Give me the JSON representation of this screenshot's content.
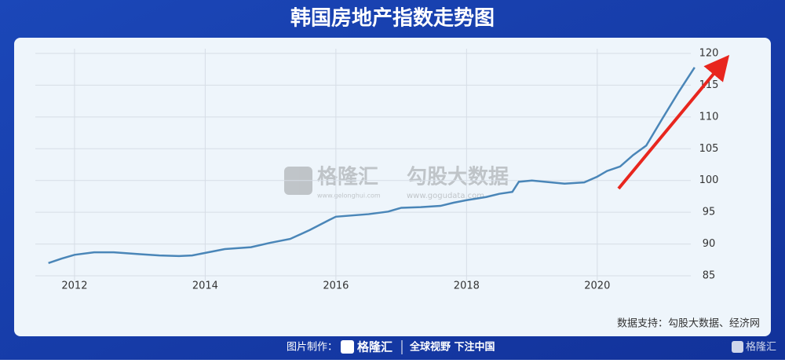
{
  "chart_data": {
    "type": "line",
    "title": "韩国房地产指数走势图",
    "x": [
      2011.6,
      2011.8,
      2012.0,
      2012.3,
      2012.6,
      2013.0,
      2013.3,
      2013.6,
      2013.8,
      2014.0,
      2014.3,
      2014.7,
      2015.0,
      2015.3,
      2015.6,
      2015.9,
      2016.0,
      2016.5,
      2016.8,
      2017.0,
      2017.3,
      2017.6,
      2017.8,
      2018.0,
      2018.3,
      2018.5,
      2018.7,
      2018.8,
      2019.0,
      2019.5,
      2019.8,
      2020.0,
      2020.15,
      2020.35,
      2020.55,
      2020.75,
      2021.0,
      2021.25,
      2021.49
    ],
    "series": [
      {
        "color": "#4a86b8",
        "values": [
          87.0,
          87.7,
          88.3,
          88.7,
          88.7,
          88.4,
          88.2,
          88.1,
          88.2,
          88.6,
          89.2,
          89.5,
          90.2,
          90.8,
          92.2,
          93.8,
          94.3,
          94.7,
          95.1,
          95.7,
          95.8,
          96.0,
          96.5,
          96.9,
          97.4,
          97.9,
          98.2,
          99.8,
          100.0,
          99.5,
          99.7,
          100.6,
          101.5,
          102.2,
          104.0,
          105.5,
          109.8,
          114.0,
          117.8
        ]
      }
    ],
    "xlim": [
      2011.4,
      2021.6
    ],
    "xticks": [
      2012,
      2014,
      2016,
      2018,
      2020
    ],
    "ylim": [
      85,
      120
    ],
    "yticks": [
      85,
      90,
      95,
      100,
      105,
      110,
      115,
      120
    ],
    "grid": true
  },
  "watermarks": [
    "格隆汇",
    "www.gelonghui.com",
    "勾股大数据",
    "www.gogudata.com"
  ],
  "source": "数据支持：勾股大数据、经济网",
  "footer": {
    "made_by": "图片制作：",
    "brand": "格隆汇",
    "slogan": "全球视野 下注中国",
    "corner": "格隆汇"
  }
}
